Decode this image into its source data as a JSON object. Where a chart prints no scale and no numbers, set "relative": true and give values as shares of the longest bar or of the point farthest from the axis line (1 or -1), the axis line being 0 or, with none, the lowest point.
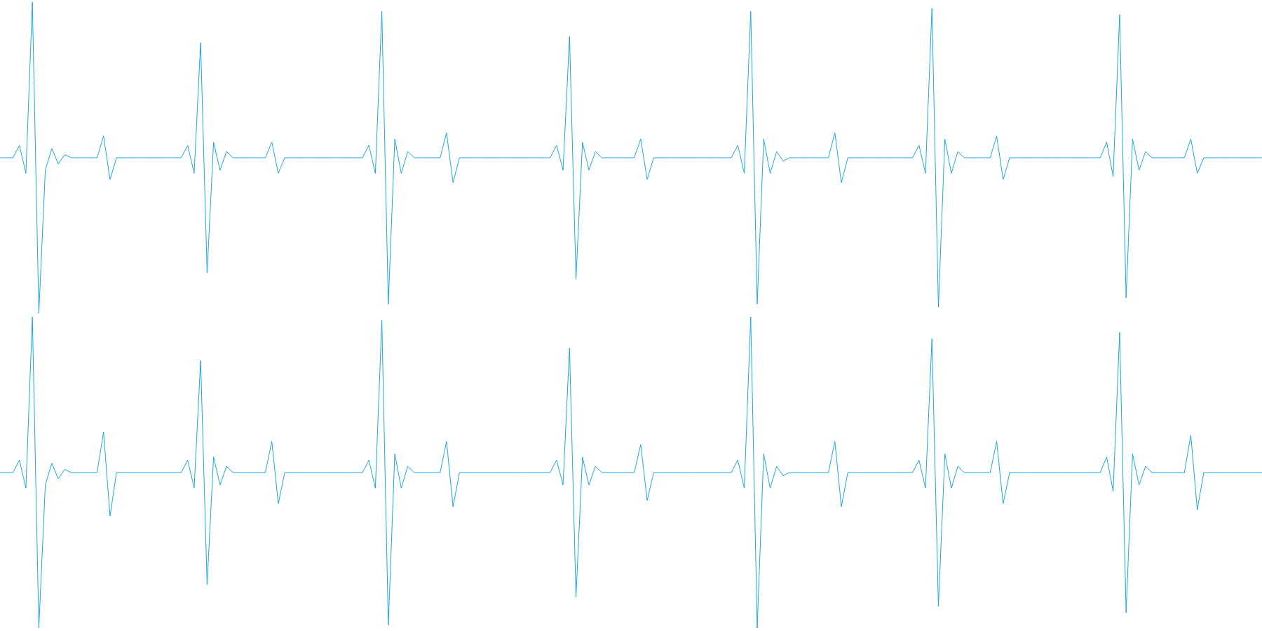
{
  "chart_data": [
    {
      "type": "line",
      "relative": true,
      "legend": false,
      "categories": [
        null,
        null,
        null,
        null,
        null,
        null,
        null,
        null,
        null,
        null,
        null,
        null,
        null,
        null,
        null,
        null,
        null,
        null,
        null,
        null,
        null,
        null,
        null,
        null,
        null,
        null,
        null,
        null,
        null,
        null,
        null,
        null,
        null,
        null,
        null,
        null,
        null,
        null,
        null,
        null,
        null,
        null,
        null,
        null,
        null,
        null,
        null,
        null,
        null,
        null,
        null,
        null,
        null,
        null,
        null,
        null,
        null,
        null,
        null,
        null,
        null,
        null,
        null,
        null,
        null,
        null,
        null,
        null,
        null,
        null,
        null,
        null,
        null,
        null,
        null,
        null,
        null,
        null,
        null,
        null,
        null,
        null,
        null,
        null,
        null,
        null,
        null,
        null,
        null,
        null,
        null,
        null,
        null,
        null,
        null,
        null,
        null,
        null,
        null,
        null,
        null,
        null,
        null,
        null,
        null,
        null,
        null,
        null,
        null,
        null,
        null,
        null,
        null,
        null,
        null,
        null,
        null,
        null,
        null,
        null,
        null,
        null,
        null,
        null,
        null,
        null,
        null,
        null,
        null,
        null,
        null,
        null,
        null,
        null,
        null,
        null,
        null,
        null,
        null,
        null,
        null,
        null,
        null,
        null,
        null,
        null,
        null,
        null,
        null,
        null,
        null,
        null,
        null,
        null,
        null,
        null,
        null,
        null,
        null,
        null,
        null,
        null,
        null,
        null,
        null,
        null,
        null,
        null,
        null,
        null,
        null,
        null,
        null,
        null,
        null,
        null,
        null,
        null,
        null,
        null,
        null,
        null,
        null,
        null,
        null,
        null,
        null,
        null,
        null,
        null,
        null,
        null,
        null,
        null,
        null,
        null
      ],
      "series": [
        {
          "color": "#1ba8e0",
          "values": [
            0.5,
            0.5,
            0.5,
            0.54,
            0.45,
            1,
            0,
            0.46,
            0.53,
            0.48,
            0.51,
            0.5,
            0.5,
            0.5,
            0.5,
            0.5,
            0.57,
            0.43,
            0.5,
            0.5,
            0.5,
            0.5,
            0.5,
            0.5,
            0.5,
            0.5,
            0.5,
            0.5,
            0.5,
            0.54,
            0.45,
            0.87,
            0.13,
            0.55,
            0.46,
            0.52,
            0.5,
            0.5,
            0.5,
            0.5,
            0.5,
            0.5,
            0.55,
            0.45,
            0.5,
            0.5,
            0.5,
            0.5,
            0.5,
            0.5,
            0.5,
            0.5,
            0.5,
            0.5,
            0.5,
            0.5,
            0.5,
            0.54,
            0.45,
            0.97,
            0.03,
            0.56,
            0.45,
            0.52,
            0.5,
            0.5,
            0.5,
            0.5,
            0.5,
            0.58,
            0.42,
            0.5,
            0.5,
            0.5,
            0.5,
            0.5,
            0.5,
            0.5,
            0.5,
            0.5,
            0.5,
            0.5,
            0.5,
            0.5,
            0.5,
            0.5,
            0.54,
            0.46,
            0.89,
            0.11,
            0.55,
            0.46,
            0.52,
            0.5,
            0.5,
            0.5,
            0.5,
            0.5,
            0.5,
            0.56,
            0.43,
            0.5,
            0.5,
            0.5,
            0.5,
            0.5,
            0.5,
            0.5,
            0.5,
            0.5,
            0.5,
            0.5,
            0.5,
            0.5,
            0.54,
            0.45,
            0.97,
            0.03,
            0.56,
            0.45,
            0.52,
            0.49,
            0.5,
            0.5,
            0.5,
            0.5,
            0.5,
            0.5,
            0.5,
            0.58,
            0.42,
            0.5,
            0.5,
            0.5,
            0.5,
            0.5,
            0.5,
            0.5,
            0.5,
            0.5,
            0.5,
            0.5,
            0.54,
            0.45,
            0.98,
            0.02,
            0.56,
            0.45,
            0.52,
            0.5,
            0.5,
            0.5,
            0.5,
            0.5,
            0.57,
            0.43,
            0.5,
            0.5,
            0.5,
            0.5,
            0.5,
            0.5,
            0.5,
            0.5,
            0.5,
            0.5,
            0.5,
            0.5,
            0.5,
            0.5,
            0.5,
            0.55,
            0.44,
            0.96,
            0.05,
            0.56,
            0.46,
            0.52,
            0.5,
            0.5,
            0.5,
            0.5,
            0.5,
            0.5,
            0.56,
            0.45,
            0.5,
            0.5,
            0.5,
            0.5,
            0.5,
            0.5,
            0.5,
            0.5,
            0.5,
            0.5
          ]
        }
      ]
    },
    {
      "type": "line",
      "relative": true,
      "legend": false,
      "categories": [
        null,
        null,
        null,
        null,
        null,
        null,
        null,
        null,
        null,
        null,
        null,
        null,
        null,
        null,
        null,
        null,
        null,
        null,
        null,
        null,
        null,
        null,
        null,
        null,
        null,
        null,
        null,
        null,
        null,
        null,
        null,
        null,
        null,
        null,
        null,
        null,
        null,
        null,
        null,
        null,
        null,
        null,
        null,
        null,
        null,
        null,
        null,
        null,
        null,
        null,
        null,
        null,
        null,
        null,
        null,
        null,
        null,
        null,
        null,
        null,
        null,
        null,
        null,
        null,
        null,
        null,
        null,
        null,
        null,
        null,
        null,
        null,
        null,
        null,
        null,
        null,
        null,
        null,
        null,
        null,
        null,
        null,
        null,
        null,
        null,
        null,
        null,
        null,
        null,
        null,
        null,
        null,
        null,
        null,
        null,
        null,
        null,
        null,
        null,
        null,
        null,
        null,
        null,
        null,
        null,
        null,
        null,
        null,
        null,
        null,
        null,
        null,
        null,
        null,
        null,
        null,
        null,
        null,
        null,
        null,
        null,
        null,
        null,
        null,
        null,
        null,
        null,
        null,
        null,
        null,
        null,
        null,
        null,
        null,
        null,
        null,
        null,
        null,
        null,
        null,
        null,
        null,
        null,
        null,
        null,
        null,
        null,
        null,
        null,
        null,
        null,
        null,
        null,
        null,
        null,
        null,
        null,
        null,
        null,
        null,
        null,
        null,
        null,
        null,
        null,
        null,
        null,
        null,
        null,
        null,
        null,
        null,
        null,
        null,
        null,
        null,
        null,
        null,
        null,
        null,
        null,
        null,
        null,
        null,
        null,
        null,
        null,
        null,
        null,
        null,
        null,
        null,
        null,
        null,
        null,
        null
      ],
      "series": [
        {
          "color": "#1ba8e0",
          "values": [
            0.5,
            0.5,
            0.5,
            0.54,
            0.45,
            1,
            0,
            0.46,
            0.53,
            0.48,
            0.51,
            0.5,
            0.5,
            0.5,
            0.5,
            0.5,
            0.63,
            0.36,
            0.5,
            0.5,
            0.5,
            0.5,
            0.5,
            0.5,
            0.5,
            0.5,
            0.5,
            0.5,
            0.5,
            0.54,
            0.45,
            0.86,
            0.14,
            0.55,
            0.46,
            0.52,
            0.5,
            0.5,
            0.5,
            0.5,
            0.5,
            0.5,
            0.6,
            0.4,
            0.5,
            0.5,
            0.5,
            0.5,
            0.5,
            0.5,
            0.5,
            0.5,
            0.5,
            0.5,
            0.5,
            0.5,
            0.5,
            0.54,
            0.45,
            0.99,
            0.01,
            0.56,
            0.45,
            0.52,
            0.5,
            0.5,
            0.5,
            0.5,
            0.5,
            0.6,
            0.39,
            0.5,
            0.5,
            0.5,
            0.5,
            0.5,
            0.5,
            0.5,
            0.5,
            0.5,
            0.5,
            0.5,
            0.5,
            0.5,
            0.5,
            0.5,
            0.54,
            0.46,
            0.9,
            0.1,
            0.55,
            0.46,
            0.52,
            0.5,
            0.5,
            0.5,
            0.5,
            0.5,
            0.5,
            0.59,
            0.41,
            0.5,
            0.5,
            0.5,
            0.5,
            0.5,
            0.5,
            0.5,
            0.5,
            0.5,
            0.5,
            0.5,
            0.5,
            0.5,
            0.54,
            0.45,
            1,
            0,
            0.56,
            0.45,
            0.52,
            0.49,
            0.5,
            0.5,
            0.5,
            0.5,
            0.5,
            0.5,
            0.5,
            0.6,
            0.39,
            0.5,
            0.5,
            0.5,
            0.5,
            0.5,
            0.5,
            0.5,
            0.5,
            0.5,
            0.5,
            0.5,
            0.54,
            0.45,
            0.93,
            0.07,
            0.56,
            0.45,
            0.52,
            0.5,
            0.5,
            0.5,
            0.5,
            0.5,
            0.6,
            0.4,
            0.5,
            0.5,
            0.5,
            0.5,
            0.5,
            0.5,
            0.5,
            0.5,
            0.5,
            0.5,
            0.5,
            0.5,
            0.5,
            0.5,
            0.5,
            0.55,
            0.44,
            0.95,
            0.05,
            0.56,
            0.46,
            0.52,
            0.5,
            0.5,
            0.5,
            0.5,
            0.5,
            0.5,
            0.62,
            0.38,
            0.5,
            0.5,
            0.5,
            0.5,
            0.5,
            0.5,
            0.5,
            0.5,
            0.5,
            0.5
          ]
        }
      ]
    }
  ]
}
